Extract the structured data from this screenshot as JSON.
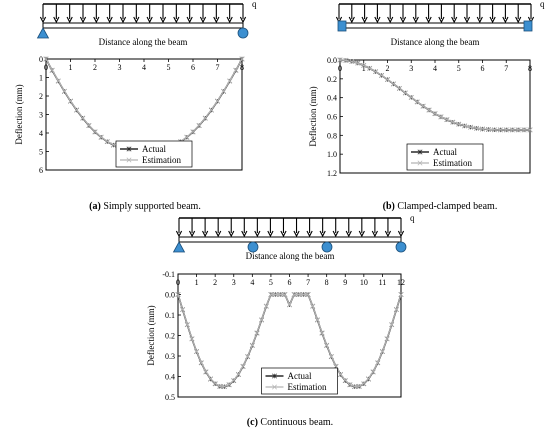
{
  "figure": {
    "load_label": "q",
    "distance_label": "Distance along the beam"
  },
  "colors": {
    "actual": "#2a2a2a",
    "estimation": "#b4b4b4",
    "support": "#3c8fd0",
    "axis": "#000000"
  },
  "panels": [
    {
      "id": "a",
      "caption_letter": "(a)",
      "caption_text": " Simply supported beam.",
      "supports": [
        "pin",
        "roller"
      ],
      "chart_data": {
        "type": "line",
        "x": [
          0,
          0.25,
          0.5,
          0.75,
          1,
          1.25,
          1.5,
          1.75,
          2,
          2.25,
          2.5,
          2.75,
          3,
          3.25,
          3.5,
          3.75,
          4,
          4.25,
          4.5,
          4.75,
          5,
          5.25,
          5.5,
          5.75,
          6,
          6.25,
          6.5,
          6.75,
          7,
          7.25,
          7.5,
          7.75,
          8
        ],
        "series": [
          {
            "name": "Actual",
            "values": [
              0,
              0.61,
              1.19,
              1.75,
              2.28,
              2.76,
              3.2,
              3.6,
              3.94,
              4.23,
              4.47,
              4.65,
              4.78,
              4.86,
              4.88,
              4.88,
              4.88,
              4.88,
              4.88,
              4.86,
              4.78,
              4.65,
              4.47,
              4.23,
              3.94,
              3.6,
              3.2,
              2.76,
              2.28,
              1.75,
              1.19,
              0.61,
              0
            ]
          },
          {
            "name": "Estimation",
            "values": [
              0,
              0.6,
              1.18,
              1.74,
              2.27,
              2.75,
              3.19,
              3.59,
              3.93,
              4.22,
              4.46,
              4.64,
              4.77,
              4.85,
              4.87,
              4.87,
              4.87,
              4.87,
              4.87,
              4.85,
              4.77,
              4.64,
              4.46,
              4.22,
              3.93,
              3.59,
              3.19,
              2.75,
              2.27,
              1.74,
              1.18,
              0.6,
              0
            ]
          }
        ],
        "xlim": [
          0,
          8
        ],
        "ylim": [
          0,
          6
        ],
        "y_inverted": true,
        "xticks": [
          0,
          1,
          2,
          3,
          4,
          5,
          6,
          7,
          8
        ],
        "yticks": [
          0,
          1,
          2,
          3,
          4,
          5,
          6
        ],
        "ytick_labels": [
          "0",
          "1",
          "2",
          "3",
          "4",
          "5",
          "6"
        ],
        "ylabel": "Deflection (mm)",
        "legend": "bottom-center"
      }
    },
    {
      "id": "b",
      "caption_letter": "(b)",
      "caption_text": " Clamped-clamped beam.",
      "supports": [
        "clamp",
        "clamp"
      ],
      "chart_data": {
        "type": "line",
        "x": [
          0,
          0.25,
          0.5,
          0.75,
          1,
          1.25,
          1.5,
          1.75,
          2,
          2.25,
          2.5,
          2.75,
          3,
          3.25,
          3.5,
          3.75,
          4,
          4.25,
          4.5,
          4.75,
          5,
          5.25,
          5.5,
          5.75,
          6,
          6.25,
          6.5,
          6.75,
          7,
          7.25,
          7.5,
          7.75,
          8
        ],
        "series": [
          {
            "name": "Actual",
            "values": [
              0,
              0.004,
              0.015,
              0.033,
              0.058,
              0.088,
              0.124,
              0.164,
              0.208,
              0.254,
              0.302,
              0.35,
              0.398,
              0.445,
              0.49,
              0.532,
              0.57,
              0.604,
              0.634,
              0.66,
              0.682,
              0.7,
              0.714,
              0.725,
              0.733,
              0.738,
              0.741,
              0.742,
              0.742,
              0.742,
              0.742,
              0.742,
              0.742
            ]
          },
          {
            "name": "Estimation",
            "values": [
              0,
              0.004,
              0.015,
              0.033,
              0.057,
              0.087,
              0.123,
              0.163,
              0.207,
              0.253,
              0.301,
              0.349,
              0.397,
              0.444,
              0.489,
              0.531,
              0.569,
              0.603,
              0.633,
              0.659,
              0.681,
              0.699,
              0.713,
              0.724,
              0.732,
              0.737,
              0.74,
              0.741,
              0.741,
              0.741,
              0.741,
              0.741,
              0.741
            ]
          }
        ],
        "xlim": [
          0,
          8
        ],
        "ylim": [
          0,
          1.2
        ],
        "y_inverted": true,
        "xticks": [
          0,
          1,
          2,
          3,
          4,
          5,
          6,
          7,
          8
        ],
        "yticks": [
          0,
          0.2,
          0.4,
          0.6,
          0.8,
          1.0,
          1.2
        ],
        "ytick_labels": [
          "0.0",
          "0.2",
          "0.4",
          "0.6",
          "0.8",
          "1.0",
          "1.2"
        ],
        "ylabel": "Deflection (mm)",
        "legend": "bottom-center"
      }
    },
    {
      "id": "c",
      "caption_letter": "(c)",
      "caption_text": " Continuous beam.",
      "supports": [
        "pin",
        "roller",
        "roller",
        "roller"
      ],
      "chart_data": {
        "type": "line",
        "x": [
          0,
          0.25,
          0.5,
          0.75,
          1,
          1.25,
          1.5,
          1.75,
          2,
          2.25,
          2.5,
          2.75,
          3,
          3.25,
          3.5,
          3.75,
          4,
          4.25,
          4.5,
          4.75,
          5,
          5.25,
          5.5,
          5.75,
          6,
          6.25,
          6.5,
          6.75,
          7,
          7.25,
          7.5,
          7.75,
          8,
          8.25,
          8.5,
          8.75,
          9,
          9.25,
          9.5,
          9.75,
          10,
          10.25,
          10.5,
          10.75,
          11,
          11.25,
          11.5,
          11.75,
          12
        ],
        "series": [
          {
            "name": "Actual",
            "values": [
              0,
              0.0736,
              0.1473,
              0.2164,
              0.2786,
              0.333,
              0.3777,
              0.4122,
              0.4357,
              0.4483,
              0.4498,
              0.4403,
              0.4204,
              0.3903,
              0.3507,
              0.303,
              0.2484,
              0.188,
              0.1239,
              0.0572,
              0.0,
              0.0,
              0.0,
              0.0,
              0.05,
              0.0,
              0.0,
              0.0,
              0.0,
              0.0572,
              0.1239,
              0.188,
              0.2484,
              0.303,
              0.3507,
              0.3903,
              0.4204,
              0.4403,
              0.4498,
              0.4483,
              0.4357,
              0.4122,
              0.3777,
              0.333,
              0.2786,
              0.2164,
              0.1473,
              0.0736,
              0
            ]
          },
          {
            "name": "Estimation",
            "values": [
              0,
              0.0731,
              0.1466,
              0.2156,
              0.2777,
              0.332,
              0.3767,
              0.4112,
              0.4347,
              0.4473,
              0.4488,
              0.4393,
              0.4194,
              0.3893,
              0.3497,
              0.302,
              0.2474,
              0.187,
              0.1229,
              0.0562,
              0.0,
              0.0,
              0.0,
              0.0,
              0.05,
              0.0,
              0.0,
              0.0,
              0.0,
              0.0562,
              0.1229,
              0.187,
              0.2474,
              0.302,
              0.3497,
              0.3893,
              0.4194,
              0.4393,
              0.4488,
              0.4473,
              0.4347,
              0.4112,
              0.3767,
              0.332,
              0.2777,
              0.2156,
              0.1466,
              0.0731,
              0
            ]
          }
        ],
        "xlim": [
          0,
          12
        ],
        "ylim": [
          -0.1,
          0.5
        ],
        "y_inverted": true,
        "xticks": [
          0,
          1,
          2,
          3,
          4,
          5,
          6,
          7,
          8,
          9,
          10,
          11,
          12
        ],
        "yticks": [
          -0.1,
          0.0,
          0.1,
          0.2,
          0.3,
          0.4,
          0.5
        ],
        "ytick_labels": [
          "-0.1",
          "0.0",
          "0.1",
          "0.2",
          "0.3",
          "0.4",
          "0.5"
        ],
        "ylabel": "Deflection (mm)",
        "legend": "bottom-center"
      }
    }
  ]
}
